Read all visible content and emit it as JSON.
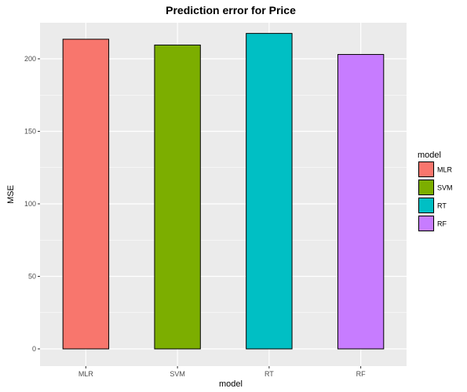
{
  "chart_data": {
    "type": "bar",
    "title": "Prediction error for Price",
    "xlabel": "model",
    "ylabel": "MSE",
    "categories": [
      "MLR",
      "SVM",
      "RT",
      "RF"
    ],
    "values": [
      213.5,
      209.5,
      217.5,
      203
    ],
    "colors": [
      "#F8766D",
      "#7CAE00",
      "#00BFC4",
      "#C77CFF"
    ],
    "ylim": [
      0,
      228
    ],
    "yticks": [
      0,
      50,
      100,
      150,
      200
    ],
    "grid": true,
    "panel_background": "#EBEBEB",
    "grid_color": "#FFFFFF",
    "bar_border_color": "#000000",
    "legend": {
      "title": "model",
      "placement": "right",
      "entries": [
        "MLR",
        "SVM",
        "RT",
        "RF"
      ]
    }
  }
}
